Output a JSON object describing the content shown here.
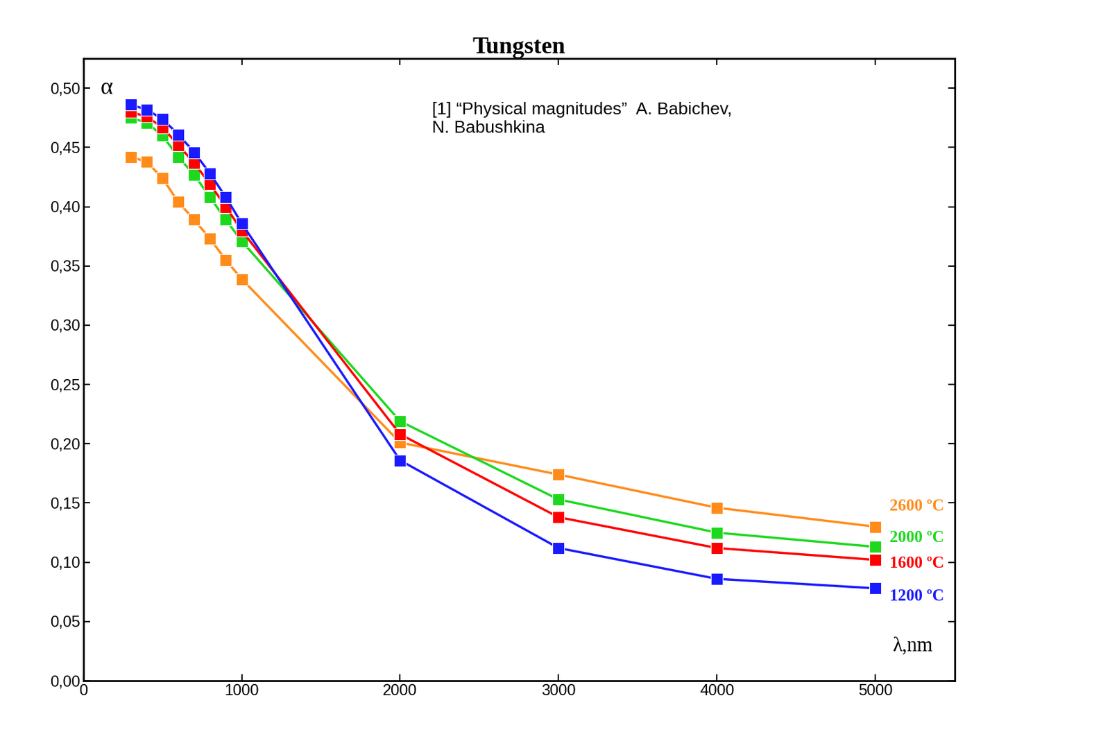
{
  "chart_data": {
    "type": "line",
    "title": "Tungsten",
    "x_label": "λ,nm",
    "y_label": "α",
    "annotations": [
      "[1] “Physical magnitudes”  A. Babichev,\nN. Babushkina"
    ],
    "x": [
      300,
      400,
      500,
      600,
      700,
      800,
      900,
      1000,
      2000,
      3000,
      4000,
      5000
    ],
    "series": [
      {
        "name": "2600 ºC",
        "color": "#ff8c1a",
        "marker": "s",
        "line_style": "solid",
        "values": [
          0.442,
          0.438,
          0.424,
          0.404,
          0.389,
          0.373,
          0.355,
          0.339,
          0.201,
          0.174,
          0.146,
          0.13
        ]
      },
      {
        "name": "2000 ºC",
        "color": "#1ed81e",
        "marker": "s",
        "line_style": "solid",
        "values": [
          0.475,
          0.471,
          0.46,
          0.442,
          0.427,
          0.408,
          0.389,
          0.371,
          0.219,
          0.153,
          0.125,
          0.113
        ]
      },
      {
        "name": "1600 ºC",
        "color": "#ff0000",
        "marker": "s",
        "line_style": "solid",
        "values": [
          0.48,
          0.476,
          0.467,
          0.452,
          0.437,
          0.419,
          0.4,
          0.38,
          0.208,
          0.138,
          0.112,
          0.102
        ]
      },
      {
        "name": "1200 ºC",
        "color": "#1a1aff",
        "marker": "s",
        "line_style": "solid",
        "values": [
          0.486,
          0.482,
          0.474,
          0.461,
          0.446,
          0.428,
          0.408,
          0.386,
          0.186,
          0.112,
          0.086,
          0.078
        ]
      }
    ],
    "xlim": [
      0,
      5500
    ],
    "xticks": [
      0,
      1000,
      2000,
      3000,
      4000,
      5000
    ],
    "ylim": [
      0,
      0.525
    ],
    "yticks": [
      {
        "value": 0.0,
        "label": "0,00"
      },
      {
        "value": 0.05,
        "label": "0,05"
      },
      {
        "value": 0.1,
        "label": "0,10"
      },
      {
        "value": 0.15,
        "label": "0,15"
      },
      {
        "value": 0.2,
        "label": "0,20"
      },
      {
        "value": 0.25,
        "label": "0,25"
      },
      {
        "value": 0.3,
        "label": "0,30"
      },
      {
        "value": 0.35,
        "label": "0,35"
      },
      {
        "value": 0.4,
        "label": "0,40"
      },
      {
        "value": 0.45,
        "label": "0,45"
      },
      {
        "value": 0.5,
        "label": "0,50"
      }
    ],
    "grid": false
  }
}
